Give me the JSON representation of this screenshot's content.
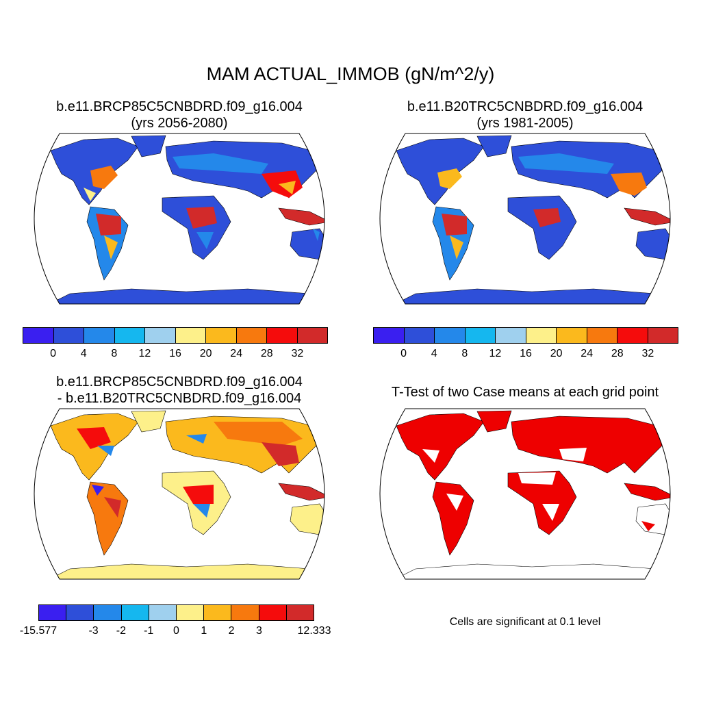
{
  "title": "MAM ACTUAL_IMMOB (gN/m^2/y)",
  "panels": {
    "top_left": {
      "line1": "b.e11.BRCP85C5CNBDRD.f09_g16.004",
      "line2": "(yrs 2056-2080)"
    },
    "top_right": {
      "line1": "b.e11.B20TRC5CNBDRD.f09_g16.004",
      "line2": "(yrs 1981-2005)"
    },
    "bottom_left": {
      "line1": "b.e11.BRCP85C5CNBDRD.f09_g16.004",
      "line2": "- b.e11.B20TRC5CNBDRD.f09_g16.004"
    },
    "bottom_right": {
      "line1": "T-Test of two Case means at each grid point",
      "note": "Cells are significant at 0.1 level"
    }
  },
  "colorbar_colors": [
    "#3a1ff0",
    "#2e4fd9",
    "#2488ea",
    "#15b7ef",
    "#9fd0ee",
    "#fdf08a",
    "#fbb91d",
    "#f7790e",
    "#f50c0c",
    "#d22a2a"
  ],
  "colorbar_abs": {
    "labels": [
      "0",
      "4",
      "8",
      "12",
      "16",
      "20",
      "24",
      "28",
      "32"
    ]
  },
  "colorbar_diff": {
    "labels": [
      "-15.577",
      "-3",
      "-2",
      "-1",
      "0",
      "1",
      "2",
      "3",
      "12.333"
    ]
  },
  "significance_color": "#ee0000"
}
